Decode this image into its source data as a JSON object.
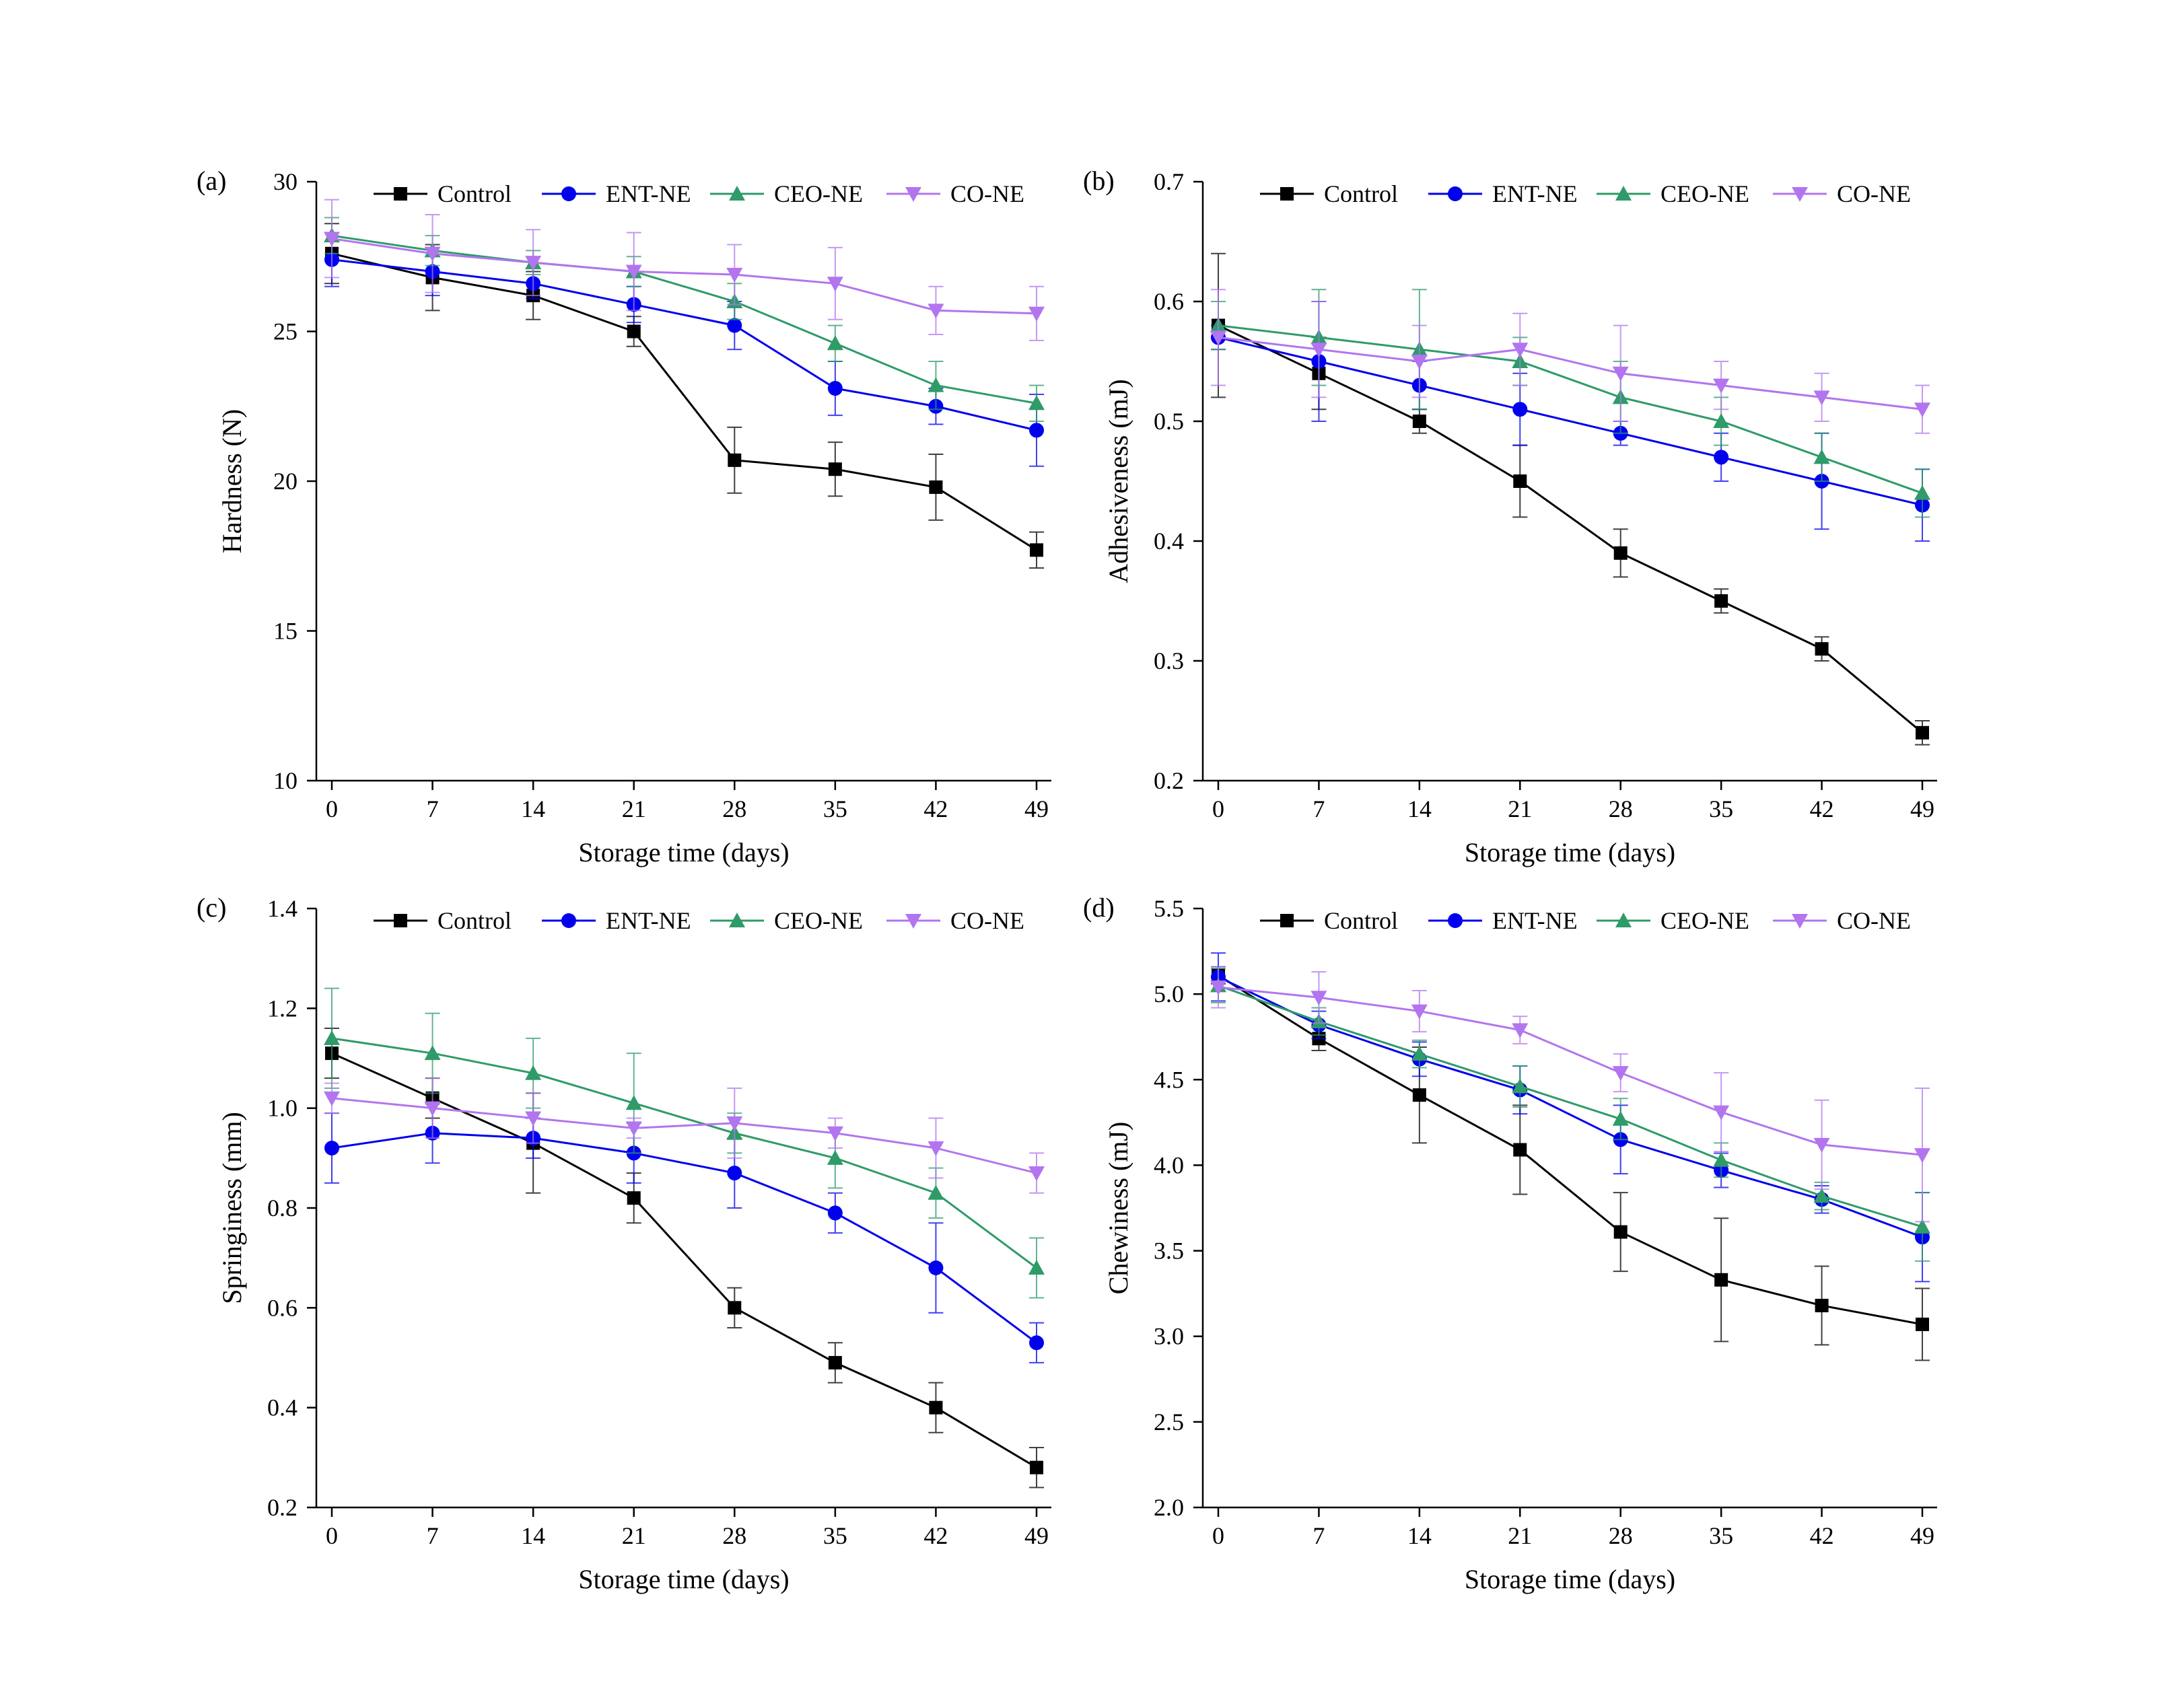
{
  "series_styles": [
    {
      "name": "Control",
      "color": "#000000",
      "marker": "square"
    },
    {
      "name": "ENT-NE",
      "color": "#0000ee",
      "marker": "circle"
    },
    {
      "name": "CEO-NE",
      "color": "#2e9b68",
      "marker": "triangle-up"
    },
    {
      "name": "CO-NE",
      "color": "#b275ef",
      "marker": "triangle-down"
    }
  ],
  "chart_data": [
    {
      "type": "line",
      "panel_label": "(a)",
      "xlabel": "Storage time (days)",
      "ylabel": "Hardness (N)",
      "x": [
        0,
        7,
        14,
        21,
        28,
        35,
        42,
        49
      ],
      "xticks": [
        "0",
        "7",
        "14",
        "21",
        "28",
        "35",
        "42",
        "49"
      ],
      "ylim": [
        10,
        30
      ],
      "yticks": [
        "10",
        "15",
        "20",
        "25",
        "30"
      ],
      "legend_position": "top",
      "series": [
        {
          "name": "Control",
          "values": [
            27.6,
            26.8,
            26.2,
            25.0,
            20.7,
            20.4,
            19.8,
            17.7
          ],
          "errors": [
            1.0,
            1.1,
            0.8,
            0.5,
            1.1,
            0.9,
            1.1,
            0.6
          ]
        },
        {
          "name": "ENT-NE",
          "values": [
            27.4,
            27.0,
            26.6,
            25.9,
            25.2,
            23.1,
            22.5,
            21.7
          ],
          "errors": [
            0.9,
            0.8,
            0.5,
            0.6,
            0.8,
            0.9,
            0.6,
            1.2
          ]
        },
        {
          "name": "CEO-NE",
          "values": [
            28.2,
            27.7,
            27.3,
            27.0,
            26.0,
            24.6,
            23.2,
            22.6
          ],
          "errors": [
            0.6,
            0.5,
            0.4,
            0.5,
            0.6,
            0.6,
            0.8,
            0.6
          ]
        },
        {
          "name": "CO-NE",
          "values": [
            28.1,
            27.6,
            27.3,
            27.0,
            26.9,
            26.6,
            25.7,
            25.6
          ],
          "errors": [
            1.3,
            1.3,
            1.1,
            1.3,
            1.0,
            1.2,
            0.8,
            0.9
          ]
        }
      ]
    },
    {
      "type": "line",
      "panel_label": "(b)",
      "xlabel": "Storage time (days)",
      "ylabel": "Adhesiveness (mJ)",
      "x": [
        0,
        7,
        14,
        21,
        28,
        35,
        42,
        49
      ],
      "xticks": [
        "0",
        "7",
        "14",
        "21",
        "28",
        "35",
        "42",
        "49"
      ],
      "ylim": [
        0.2,
        0.7
      ],
      "yticks": [
        "0.2",
        "0.3",
        "0.4",
        "0.5",
        "0.6",
        "0.7"
      ],
      "legend_position": "top",
      "series": [
        {
          "name": "Control",
          "values": [
            0.58,
            0.54,
            0.5,
            0.45,
            0.39,
            0.35,
            0.31,
            0.24
          ],
          "errors": [
            0.06,
            0.03,
            0.01,
            0.03,
            0.02,
            0.01,
            0.01,
            0.01
          ]
        },
        {
          "name": "ENT-NE",
          "values": [
            0.57,
            0.55,
            0.53,
            0.51,
            0.49,
            0.47,
            0.45,
            0.43
          ],
          "errors": [
            0.01,
            0.05,
            0.02,
            0.03,
            0.01,
            0.02,
            0.04,
            0.03
          ]
        },
        {
          "name": "CEO-NE",
          "values": [
            0.58,
            0.57,
            0.56,
            0.55,
            0.52,
            0.5,
            0.47,
            0.44
          ],
          "errors": [
            0.02,
            0.04,
            0.05,
            0.02,
            0.03,
            0.02,
            0.02,
            0.02
          ]
        },
        {
          "name": "CO-NE",
          "values": [
            0.57,
            0.56,
            0.55,
            0.56,
            0.54,
            0.53,
            0.52,
            0.51
          ],
          "errors": [
            0.04,
            0.04,
            0.03,
            0.03,
            0.04,
            0.02,
            0.02,
            0.02
          ]
        }
      ]
    },
    {
      "type": "line",
      "panel_label": "(c)",
      "xlabel": "Storage time (days)",
      "ylabel": "Springiness (mm)",
      "x": [
        0,
        7,
        14,
        21,
        28,
        35,
        42,
        49
      ],
      "xticks": [
        "0",
        "7",
        "14",
        "21",
        "28",
        "35",
        "42",
        "49"
      ],
      "ylim": [
        0.2,
        1.4
      ],
      "yticks": [
        "0.2",
        "0.4",
        "0.6",
        "0.8",
        "1.0",
        "1.2",
        "1.4"
      ],
      "legend_position": "top",
      "series": [
        {
          "name": "Control",
          "values": [
            1.11,
            1.02,
            0.93,
            0.82,
            0.6,
            0.49,
            0.4,
            0.28
          ],
          "errors": [
            0.05,
            0.04,
            0.1,
            0.05,
            0.04,
            0.04,
            0.05,
            0.04
          ]
        },
        {
          "name": "ENT-NE",
          "values": [
            0.92,
            0.95,
            0.94,
            0.91,
            0.87,
            0.79,
            0.68,
            0.53
          ],
          "errors": [
            0.07,
            0.06,
            0.04,
            0.06,
            0.07,
            0.04,
            0.09,
            0.04
          ]
        },
        {
          "name": "CEO-NE",
          "values": [
            1.14,
            1.11,
            1.07,
            1.01,
            0.95,
            0.9,
            0.83,
            0.68
          ],
          "errors": [
            0.1,
            0.08,
            0.07,
            0.1,
            0.04,
            0.06,
            0.05,
            0.06
          ]
        },
        {
          "name": "CO-NE",
          "values": [
            1.02,
            1.0,
            0.98,
            0.96,
            0.97,
            0.95,
            0.92,
            0.87
          ],
          "errors": [
            0.03,
            0.06,
            0.05,
            0.02,
            0.07,
            0.03,
            0.06,
            0.04
          ]
        }
      ]
    },
    {
      "type": "line",
      "panel_label": "(d)",
      "xlabel": "Storage time (days)",
      "ylabel": "Chewiness (mJ)",
      "x": [
        0,
        7,
        14,
        21,
        28,
        35,
        42,
        49
      ],
      "xticks": [
        "0",
        "7",
        "14",
        "21",
        "28",
        "35",
        "42",
        "49"
      ],
      "ylim": [
        2.0,
        5.5
      ],
      "yticks": [
        "2.0",
        "2.5",
        "3.0",
        "3.5",
        "4.0",
        "4.5",
        "5.0",
        "5.5"
      ],
      "legend_position": "top",
      "series": [
        {
          "name": "Control",
          "values": [
            5.11,
            4.74,
            4.41,
            4.09,
            3.61,
            3.33,
            3.18,
            3.07
          ],
          "errors": [
            0.05,
            0.07,
            0.28,
            0.26,
            0.23,
            0.36,
            0.23,
            0.21
          ]
        },
        {
          "name": "ENT-NE",
          "values": [
            5.1,
            4.82,
            4.62,
            4.44,
            4.15,
            3.97,
            3.8,
            3.58
          ],
          "errors": [
            0.14,
            0.08,
            0.1,
            0.14,
            0.2,
            0.1,
            0.08,
            0.26
          ]
        },
        {
          "name": "CEO-NE",
          "values": [
            5.05,
            4.84,
            4.65,
            4.46,
            4.27,
            4.03,
            3.82,
            3.64
          ],
          "errors": [
            0.1,
            0.08,
            0.08,
            0.12,
            0.12,
            0.1,
            0.08,
            0.2
          ]
        },
        {
          "name": "CO-NE",
          "values": [
            5.04,
            4.98,
            4.9,
            4.79,
            4.54,
            4.31,
            4.12,
            4.06
          ],
          "errors": [
            0.12,
            0.15,
            0.12,
            0.08,
            0.11,
            0.23,
            0.26,
            0.39
          ]
        }
      ]
    }
  ]
}
